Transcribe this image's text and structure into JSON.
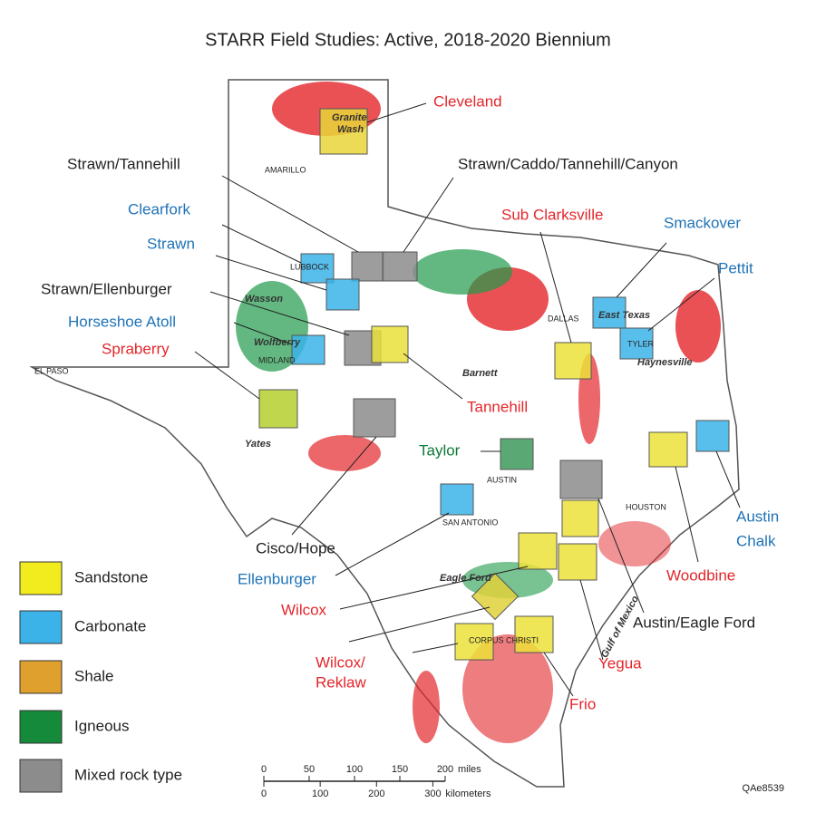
{
  "title": "STARR Field Studies: Active, 2018-2020 Biennium",
  "studies": [
    "Cleveland",
    "Strawn/Tannehill",
    "Strawn/Caddo/Tannehill/Canyon",
    "Clearfork",
    "Strawn",
    "Strawn/Ellenburger",
    "Horseshoe Atoll",
    "Spraberry",
    "Sub Clarksville",
    "Smackover",
    "Pettit",
    "Tannehill",
    "Taylor",
    "Cisco/Hope",
    "Ellenburger",
    "Wilcox",
    "Wilcox/",
    "Reklaw",
    "Frio",
    "Yegua",
    "Austin/Eagle Ford",
    "Woodbine",
    "Austin",
    "Chalk"
  ],
  "places": [
    "Granite",
    "Wash",
    "AMARILLO",
    "LUBBOCK",
    "Wasson",
    "Wolfberry",
    "MIDLAND",
    "EL PASO",
    "Yates",
    "DALLAS",
    "East Texas",
    "TYLER",
    "Haynesville",
    "Barnett",
    "AUSTIN",
    "SAN ANTONIO",
    "HOUSTON",
    "Eagle Ford",
    "CORPUS CHRISTI",
    "Gulf of Mexico"
  ],
  "legend": [
    "Sandstone",
    "Carbonate",
    "Shale",
    "Igneous",
    "Mixed rock type"
  ],
  "scale": {
    "miles": {
      "ticks": [
        0,
        50,
        100,
        150,
        200
      ],
      "unit": "miles"
    },
    "km": {
      "ticks": [
        0,
        100,
        200,
        300
      ],
      "unit": "kilometers"
    }
  },
  "code": "QAe8539"
}
